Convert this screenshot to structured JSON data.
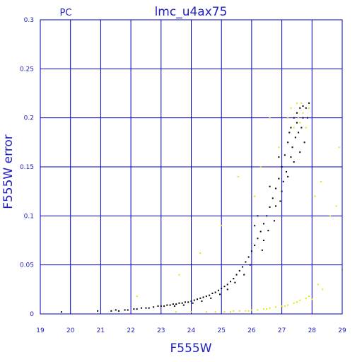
{
  "chart_data": {
    "type": "scatter",
    "title": "lmc_u4ax75",
    "corner_label": "PC",
    "xlabel": "F555W",
    "ylabel": "F555W error",
    "xlim": [
      19,
      29
    ],
    "ylim": [
      0,
      0.3
    ],
    "x_ticks": [
      "19",
      "20",
      "21",
      "22",
      "23",
      "24",
      "25",
      "26",
      "27",
      "28",
      "29"
    ],
    "y_ticks": [
      "0",
      "0.05",
      "0.1",
      "0.15",
      "0.2",
      "0.25",
      "0.3"
    ],
    "grid": true,
    "colors": {
      "grid": "#0000c0",
      "text": "#2020c0",
      "series_main": "#000000",
      "series_flagged": "#e6e600"
    },
    "series": [
      {
        "color": "#000000",
        "points": [
          [
            19.7,
            0.002
          ],
          [
            20.9,
            0.003
          ],
          [
            21.35,
            0.003
          ],
          [
            21.5,
            0.004
          ],
          [
            21.6,
            0.003
          ],
          [
            21.8,
            0.004
          ],
          [
            21.9,
            0.004
          ],
          [
            22.1,
            0.005
          ],
          [
            22.2,
            0.005
          ],
          [
            22.35,
            0.006
          ],
          [
            22.5,
            0.006
          ],
          [
            22.6,
            0.006
          ],
          [
            22.75,
            0.007
          ],
          [
            22.9,
            0.008
          ],
          [
            23.0,
            0.008
          ],
          [
            23.1,
            0.008
          ],
          [
            23.2,
            0.009
          ],
          [
            23.3,
            0.009
          ],
          [
            23.4,
            0.01
          ],
          [
            23.5,
            0.01
          ],
          [
            23.6,
            0.011
          ],
          [
            23.7,
            0.011
          ],
          [
            23.8,
            0.012
          ],
          [
            23.9,
            0.012
          ],
          [
            24.0,
            0.013
          ],
          [
            24.1,
            0.014
          ],
          [
            24.2,
            0.015
          ],
          [
            24.3,
            0.016
          ],
          [
            24.4,
            0.017
          ],
          [
            24.5,
            0.018
          ],
          [
            24.6,
            0.019
          ],
          [
            24.7,
            0.021
          ],
          [
            24.8,
            0.022
          ],
          [
            24.9,
            0.024
          ],
          [
            25.0,
            0.026
          ],
          [
            25.1,
            0.028
          ],
          [
            25.2,
            0.03
          ],
          [
            25.3,
            0.033
          ],
          [
            25.4,
            0.036
          ],
          [
            25.5,
            0.04
          ],
          [
            25.6,
            0.044
          ],
          [
            25.7,
            0.048
          ],
          [
            25.8,
            0.053
          ],
          [
            25.9,
            0.058
          ],
          [
            26.0,
            0.064
          ],
          [
            26.1,
            0.07
          ],
          [
            26.2,
            0.077
          ],
          [
            26.3,
            0.084
          ],
          [
            26.4,
            0.092
          ],
          [
            26.5,
            0.1
          ],
          [
            26.6,
            0.109
          ],
          [
            26.7,
            0.118
          ],
          [
            26.8,
            0.128
          ],
          [
            26.9,
            0.138
          ],
          [
            27.0,
            0.15
          ],
          [
            27.1,
            0.162
          ],
          [
            27.2,
            0.175
          ],
          [
            27.3,
            0.19
          ],
          [
            27.4,
            0.2
          ],
          [
            27.5,
            0.205
          ],
          [
            27.6,
            0.21
          ],
          [
            27.7,
            0.212
          ],
          [
            27.8,
            0.21
          ],
          [
            27.9,
            0.215
          ],
          [
            26.1,
            0.09
          ],
          [
            26.2,
            0.1
          ],
          [
            26.4,
            0.075
          ],
          [
            26.6,
            0.13
          ],
          [
            26.8,
            0.11
          ],
          [
            26.9,
            0.16
          ],
          [
            27.0,
            0.125
          ],
          [
            27.2,
            0.14
          ],
          [
            27.3,
            0.16
          ],
          [
            27.35,
            0.17
          ],
          [
            27.45,
            0.18
          ],
          [
            27.55,
            0.185
          ],
          [
            27.65,
            0.19
          ],
          [
            27.75,
            0.175
          ],
          [
            27.85,
            0.2
          ],
          [
            27.5,
            0.195
          ],
          [
            27.6,
            0.165
          ],
          [
            27.7,
            0.2
          ],
          [
            27.4,
            0.155
          ],
          [
            27.25,
            0.185
          ],
          [
            27.15,
            0.145
          ],
          [
            27.05,
            0.135
          ],
          [
            26.95,
            0.115
          ],
          [
            26.75,
            0.095
          ],
          [
            26.55,
            0.085
          ],
          [
            26.35,
            0.065
          ],
          [
            25.95,
            0.05
          ],
          [
            25.75,
            0.04
          ],
          [
            25.45,
            0.032
          ],
          [
            25.2,
            0.025
          ],
          [
            24.95,
            0.02
          ],
          [
            24.65,
            0.016
          ],
          [
            24.35,
            0.013
          ],
          [
            24.05,
            0.011
          ],
          [
            23.75,
            0.009
          ],
          [
            23.45,
            0.008
          ]
        ]
      },
      {
        "color": "#e6e600",
        "points": [
          [
            22.2,
            0.018
          ],
          [
            23.6,
            0.04
          ],
          [
            24.3,
            0.062
          ],
          [
            25.0,
            0.09
          ],
          [
            25.55,
            0.14
          ],
          [
            26.1,
            0.12
          ],
          [
            26.6,
            0.2
          ],
          [
            26.3,
            0.15
          ],
          [
            26.9,
            0.17
          ],
          [
            27.3,
            0.21
          ],
          [
            27.5,
            0.215
          ],
          [
            27.7,
            0.205
          ],
          [
            27.9,
            0.21
          ],
          [
            27.6,
            0.195
          ],
          [
            27.4,
            0.19
          ],
          [
            27.8,
            0.19
          ],
          [
            27.2,
            0.2
          ],
          [
            27.55,
            0.2
          ],
          [
            27.65,
            0.215
          ],
          [
            28.2,
            0.03
          ],
          [
            28.35,
            0.025
          ],
          [
            28.6,
            0.1
          ],
          [
            28.9,
            0.17
          ],
          [
            29.0,
            0.045
          ],
          [
            28.8,
            0.11
          ],
          [
            28.1,
            0.12
          ],
          [
            28.3,
            0.135
          ],
          [
            23.5,
            0.002
          ],
          [
            24.0,
            0.002
          ],
          [
            24.5,
            0.002
          ],
          [
            24.8,
            0.002
          ],
          [
            25.1,
            0.002
          ],
          [
            25.4,
            0.003
          ],
          [
            25.6,
            0.003
          ],
          [
            25.8,
            0.003
          ],
          [
            26.0,
            0.004
          ],
          [
            26.2,
            0.004
          ],
          [
            26.4,
            0.005
          ],
          [
            26.6,
            0.006
          ],
          [
            26.8,
            0.007
          ],
          [
            27.0,
            0.008
          ],
          [
            27.2,
            0.009
          ],
          [
            27.4,
            0.011
          ],
          [
            27.6,
            0.014
          ],
          [
            27.8,
            0.016
          ],
          [
            27.9,
            0.018
          ],
          [
            28.0,
            0.015
          ],
          [
            25.3,
            0.002
          ],
          [
            25.9,
            0.003
          ],
          [
            26.5,
            0.005
          ],
          [
            27.1,
            0.008
          ],
          [
            27.5,
            0.012
          ]
        ]
      }
    ]
  }
}
